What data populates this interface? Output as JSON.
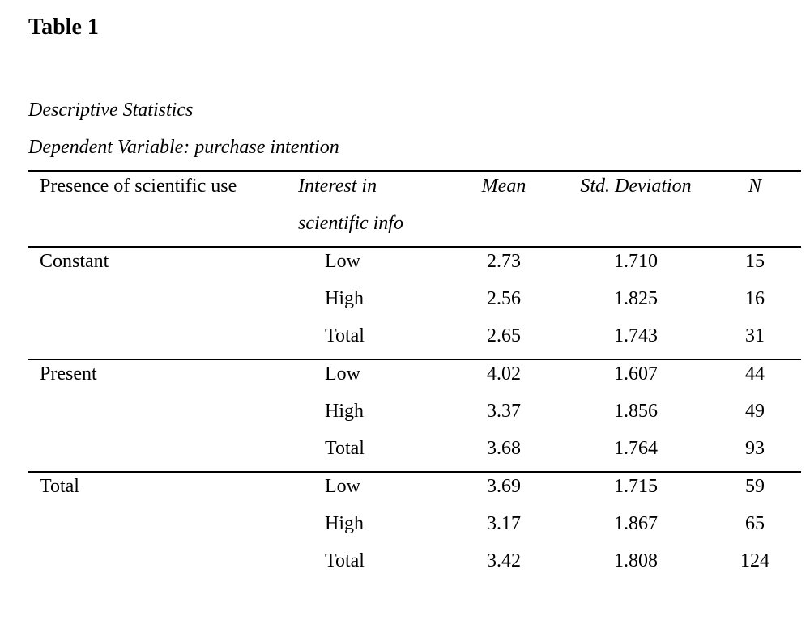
{
  "table_number": "Table 1",
  "caption_title": "Descriptive Statistics",
  "caption_dv": "Dependent Variable: purchase intention",
  "header": {
    "group": "Presence of scientific use",
    "interest_line1": "Interest in",
    "interest_line2": "scientific info",
    "mean": "Mean",
    "sd": "Std. Deviation",
    "n": "N"
  },
  "groups": [
    {
      "name": "Constant",
      "rows": [
        {
          "level": "Low",
          "mean": "2.73",
          "sd": "1.710",
          "n": "15"
        },
        {
          "level": "High",
          "mean": "2.56",
          "sd": "1.825",
          "n": "16"
        },
        {
          "level": "Total",
          "mean": "2.65",
          "sd": "1.743",
          "n": "31"
        }
      ]
    },
    {
      "name": "Present",
      "rows": [
        {
          "level": "Low",
          "mean": "4.02",
          "sd": "1.607",
          "n": "44"
        },
        {
          "level": "High",
          "mean": "3.37",
          "sd": "1.856",
          "n": "49"
        },
        {
          "level": "Total",
          "mean": "3.68",
          "sd": "1.764",
          "n": "93"
        }
      ]
    },
    {
      "name": "Total",
      "rows": [
        {
          "level": "Low",
          "mean": "3.69",
          "sd": "1.715",
          "n": "59"
        },
        {
          "level": "High",
          "mean": "3.17",
          "sd": "1.867",
          "n": "65"
        },
        {
          "level": "Total",
          "mean": "3.42",
          "sd": "1.808",
          "n": "124"
        }
      ]
    }
  ]
}
